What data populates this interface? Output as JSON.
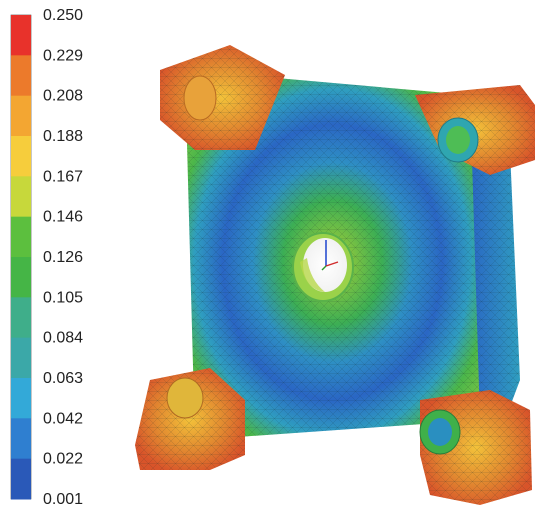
{
  "legend": {
    "labels": [
      "0.250",
      "0.229",
      "0.208",
      "0.188",
      "0.167",
      "0.146",
      "0.126",
      "0.105",
      "0.084",
      "0.063",
      "0.042",
      "0.022",
      "0.001"
    ],
    "colors": [
      "#e8322b",
      "#ec7a2b",
      "#f3a632",
      "#f6cd3c",
      "#c7d83b",
      "#5cbf3e",
      "#45b546",
      "#3fae8a",
      "#3ba8a8",
      "#33a9d8",
      "#2f7fd0",
      "#2a59b8",
      "#2546a6"
    ]
  },
  "model": {
    "colors": {
      "max": "#e03b26",
      "high": "#f0b23a",
      "mid": "#7fc242",
      "green": "#3fae4a",
      "low": "#2a66c4",
      "min": "#1f4aa8"
    }
  }
}
